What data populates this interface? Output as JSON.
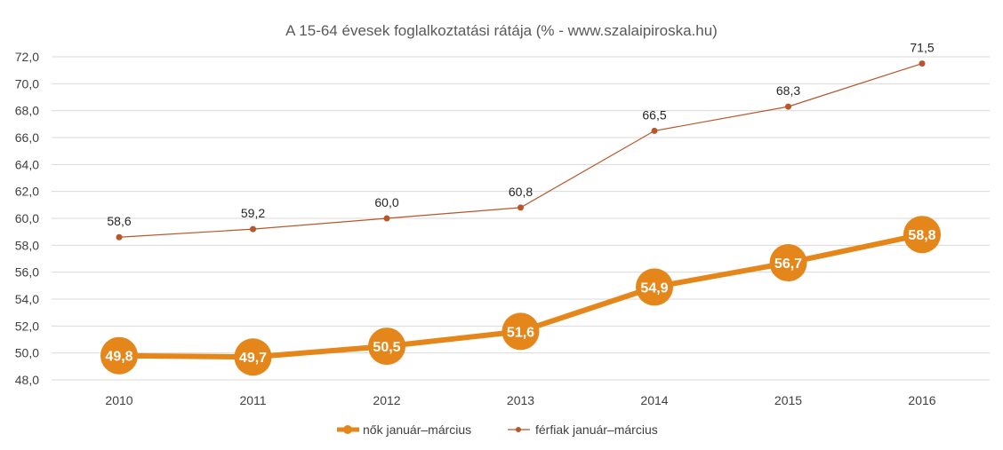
{
  "chart_data": {
    "type": "line",
    "title": "A 15-64 évesek foglalkoztatási rátája (% - www.szalaipiroska.hu)",
    "x": [
      "2010",
      "2011",
      "2012",
      "2013",
      "2014",
      "2015",
      "2016"
    ],
    "ylim": [
      48,
      72
    ],
    "yticks": [
      "48,0",
      "50,0",
      "52,0",
      "54,0",
      "56,0",
      "58,0",
      "60,0",
      "62,0",
      "64,0",
      "66,0",
      "68,0",
      "70,0",
      "72,0"
    ],
    "grid": true,
    "legend_position": "bottom",
    "series": [
      {
        "name": "nők január–március",
        "values": [
          49.8,
          49.7,
          50.5,
          51.6,
          54.9,
          56.7,
          58.8
        ],
        "labels": [
          "49,8",
          "49,7",
          "50,5",
          "51,6",
          "54,9",
          "56,7",
          "58,8"
        ],
        "color": "#E5861A"
      },
      {
        "name": "férfiak január–március",
        "values": [
          58.6,
          59.2,
          60.0,
          60.8,
          66.5,
          68.3,
          71.5
        ],
        "labels": [
          "58,6",
          "59,2",
          "60,0",
          "60,8",
          "66,5",
          "68,3",
          "71,5"
        ],
        "color": "#B8552A"
      }
    ]
  }
}
